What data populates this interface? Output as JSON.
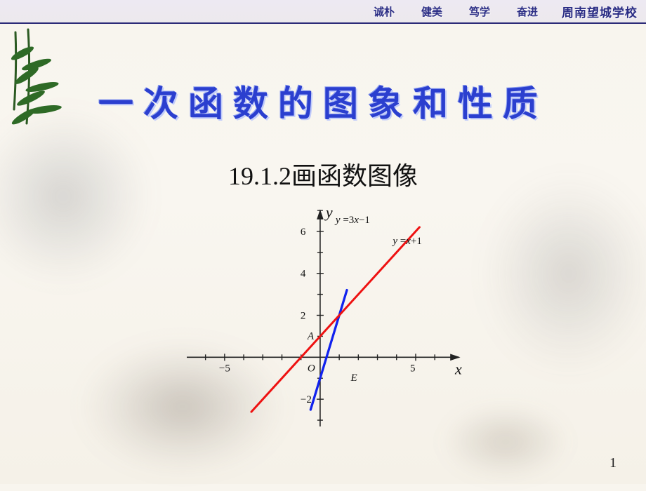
{
  "header": {
    "mottos": [
      "诚朴",
      "健美",
      "笃学",
      "奋进"
    ],
    "school": "周南望城学校",
    "motto_color": "#2a2c84",
    "border_color": "#2b2a78"
  },
  "title": {
    "text": "一次函数的图象和性质",
    "color": "#2b3fcf",
    "fontsize": 50
  },
  "subtitle": {
    "text": "19.1.2画函数图像",
    "color": "#111111",
    "fontsize": 36
  },
  "chart": {
    "type": "line",
    "x_axis_label": "x",
    "y_axis_label": "y",
    "origin_label": "O",
    "point_A_label": "A",
    "point_E_label": "E",
    "x_ticks": [
      -5,
      5
    ],
    "y_ticks": [
      -2,
      2,
      4,
      6
    ],
    "x_tick_labels": [
      "−5",
      "5"
    ],
    "y_tick_labels": [
      "−2",
      "2",
      "4",
      "6"
    ],
    "xlim": [
      -7.2,
      7.5
    ],
    "ylim": [
      -3.5,
      7.2
    ],
    "lines": [
      {
        "name": "y = 3x − 1",
        "label_parts": [
          "y ",
          "=3",
          "x",
          "−1"
        ],
        "color": "#1122ee",
        "width": 3.3,
        "x1": -0.5,
        "y1": -2.5,
        "x2": 1.4,
        "y2": 3.2
      },
      {
        "name": "y = x + 1",
        "label_parts": [
          "y ",
          "=",
          "x",
          "+1"
        ],
        "color": "#ee1111",
        "width": 3.0,
        "x1": -3.6,
        "y1": -2.6,
        "x2": 5.2,
        "y2": 6.2
      }
    ],
    "tick_len": 5,
    "background": "transparent",
    "axis_color": "#222222"
  },
  "page_number": "1"
}
